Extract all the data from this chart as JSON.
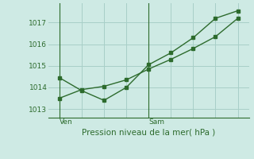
{
  "xlabel": "Pression niveau de la mer( hPa )",
  "background_color": "#ceeae4",
  "grid_color": "#a8cfc8",
  "line_color": "#2d6b2d",
  "series1_x": [
    0,
    1,
    2,
    3,
    4,
    5,
    6,
    7,
    8
  ],
  "series1_y": [
    1014.45,
    1013.85,
    1013.4,
    1014.0,
    1015.05,
    1015.6,
    1016.3,
    1017.2,
    1017.55
  ],
  "series2_x": [
    0,
    1,
    2,
    3,
    4,
    5,
    6,
    7,
    8
  ],
  "series2_y": [
    1013.5,
    1013.9,
    1014.05,
    1014.35,
    1014.85,
    1015.3,
    1015.8,
    1016.35,
    1017.2
  ],
  "xtick_positions": [
    0,
    4
  ],
  "xtick_labels": [
    "Ven",
    "Sam"
  ],
  "ytick_positions": [
    1013,
    1014,
    1015,
    1016,
    1017
  ],
  "ylim": [
    1012.6,
    1017.9
  ],
  "xlim": [
    -0.5,
    8.5
  ],
  "vline_x": [
    0,
    4
  ],
  "marker_size": 2.5,
  "line_width": 1.0,
  "xlabel_fontsize": 7.5,
  "tick_fontsize": 6.5
}
